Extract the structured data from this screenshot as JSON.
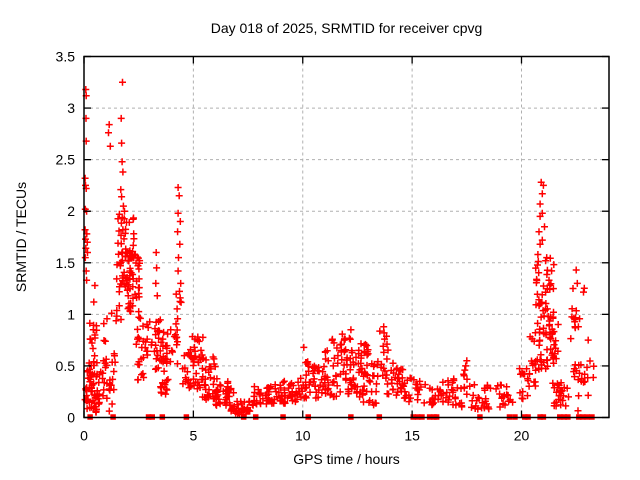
{
  "chart_data": {
    "type": "scatter",
    "title": "Day 018 of 2025, SRMTID for receiver cpvg",
    "xlabel": "GPS time / hours",
    "ylabel": "SRMTID / TECUs",
    "xlim": [
      0,
      24
    ],
    "ylim": [
      0,
      3.5
    ],
    "xticks": [
      0,
      5,
      10,
      15,
      20
    ],
    "yticks": [
      0,
      0.5,
      1,
      1.5,
      2,
      2.5,
      3,
      3.5
    ],
    "grid": {
      "show": true,
      "style": "dashed",
      "color": "#b0b0b0"
    },
    "legend": "none",
    "marker": {
      "shape": "plus",
      "color": "#ff0000",
      "size": 7,
      "stroke_width": 1.5
    },
    "zero_marker": {
      "shape": "square",
      "color": "#ff0000",
      "size": 5.5
    },
    "series_name": "SRMTID",
    "seed": 20250118,
    "points": [
      [
        0.08,
        3.18
      ],
      [
        0.1,
        3.12
      ],
      [
        0.09,
        2.9
      ],
      [
        0.1,
        2.68
      ],
      [
        0.05,
        2.32
      ],
      [
        0.07,
        2.25
      ],
      [
        0.1,
        2.22
      ],
      [
        0.06,
        2.02
      ],
      [
        0.12,
        2.0
      ],
      [
        0.05,
        1.82
      ],
      [
        0.13,
        1.78
      ],
      [
        0.07,
        1.73
      ],
      [
        0.15,
        1.7
      ],
      [
        0.08,
        1.64
      ],
      [
        0.16,
        1.6
      ],
      [
        0.06,
        1.55
      ],
      [
        0.1,
        1.42
      ],
      [
        0.12,
        1.33
      ],
      [
        0.5,
        1.28
      ],
      [
        0.45,
        1.12
      ],
      [
        1.76,
        3.25
      ],
      [
        1.7,
        2.9
      ],
      [
        1.15,
        2.84
      ],
      [
        1.12,
        2.76
      ],
      [
        1.2,
        2.63
      ],
      [
        1.72,
        2.66
      ],
      [
        1.74,
        2.48
      ],
      [
        1.78,
        2.38
      ],
      [
        1.68,
        2.21
      ],
      [
        1.72,
        2.14
      ],
      [
        1.8,
        2.05
      ],
      [
        1.85,
        2.0
      ],
      [
        1.62,
        1.97
      ],
      [
        3.3,
        1.6
      ],
      [
        3.32,
        1.45
      ],
      [
        3.28,
        1.3
      ],
      [
        3.35,
        1.18
      ],
      [
        4.3,
        2.23
      ],
      [
        4.35,
        2.15
      ],
      [
        4.3,
        1.98
      ],
      [
        4.4,
        1.9
      ],
      [
        4.28,
        1.8
      ],
      [
        4.38,
        1.68
      ],
      [
        4.32,
        1.55
      ],
      [
        4.3,
        1.42
      ],
      [
        4.42,
        1.3
      ],
      [
        5.2,
        0.78
      ],
      [
        10.05,
        0.68
      ],
      [
        12.2,
        0.85
      ],
      [
        13.7,
        0.88
      ],
      [
        13.72,
        0.82
      ],
      [
        17.5,
        0.55
      ],
      [
        17.45,
        0.5
      ],
      [
        20.9,
        2.28
      ],
      [
        21.0,
        2.25
      ],
      [
        20.95,
        2.17
      ],
      [
        20.85,
        2.07
      ],
      [
        20.95,
        1.98
      ],
      [
        20.85,
        1.95
      ],
      [
        21.05,
        1.85
      ],
      [
        20.8,
        1.8
      ],
      [
        20.95,
        1.72
      ],
      [
        20.85,
        1.68
      ],
      [
        20.75,
        1.58
      ],
      [
        21.1,
        1.52
      ],
      [
        21.15,
        1.55
      ],
      [
        22.5,
        1.43
      ],
      [
        22.55,
        1.3
      ],
      [
        22.45,
        0.95
      ],
      [
        22.6,
        0.88
      ],
      [
        23.05,
        0.75
      ]
    ],
    "clusters": [
      {
        "x0": 0.05,
        "x1": 0.6,
        "y0": 0.05,
        "y1": 0.55,
        "n": 55
      },
      {
        "x0": 0.25,
        "x1": 0.6,
        "y0": 0.55,
        "y1": 1.0,
        "n": 12
      },
      {
        "x0": 0.6,
        "x1": 1.4,
        "y0": 0.05,
        "y1": 0.45,
        "n": 26
      },
      {
        "x0": 0.85,
        "x1": 1.45,
        "y0": 0.45,
        "y1": 1.05,
        "n": 14
      },
      {
        "x0": 1.45,
        "x1": 1.7,
        "y0": 0.9,
        "y1": 1.55,
        "n": 10
      },
      {
        "x0": 1.55,
        "x1": 2.3,
        "y0": 1.5,
        "y1": 2.0,
        "n": 26
      },
      {
        "x0": 1.65,
        "x1": 2.55,
        "y0": 1.22,
        "y1": 1.62,
        "n": 55
      },
      {
        "x0": 2.0,
        "x1": 2.6,
        "y0": 1.02,
        "y1": 1.25,
        "n": 14
      },
      {
        "x0": 2.35,
        "x1": 2.95,
        "y0": 0.6,
        "y1": 0.98,
        "n": 14
      },
      {
        "x0": 2.3,
        "x1": 2.75,
        "y0": 0.35,
        "y1": 0.62,
        "n": 10
      },
      {
        "x0": 2.75,
        "x1": 3.15,
        "y0": 0.5,
        "y1": 1.0,
        "n": 7
      },
      {
        "x0": 3.2,
        "x1": 3.85,
        "y0": 0.45,
        "y1": 0.95,
        "n": 35
      },
      {
        "x0": 3.5,
        "x1": 3.9,
        "y0": 0.18,
        "y1": 0.45,
        "n": 13
      },
      {
        "x0": 3.95,
        "x1": 4.28,
        "y0": 0.5,
        "y1": 0.9,
        "n": 9
      },
      {
        "x0": 4.15,
        "x1": 4.45,
        "y0": 0.65,
        "y1": 1.25,
        "n": 12
      },
      {
        "x0": 4.5,
        "x1": 5.05,
        "y0": 0.25,
        "y1": 0.7,
        "n": 22
      },
      {
        "x0": 4.95,
        "x1": 5.45,
        "y0": 0.22,
        "y1": 0.8,
        "n": 26
      },
      {
        "x0": 5.4,
        "x1": 6.0,
        "y0": 0.15,
        "y1": 0.6,
        "n": 30
      },
      {
        "x0": 5.95,
        "x1": 6.6,
        "y0": 0.08,
        "y1": 0.4,
        "n": 30
      },
      {
        "x0": 6.55,
        "x1": 7.0,
        "y0": 0.05,
        "y1": 0.28,
        "n": 18
      },
      {
        "x0": 6.9,
        "x1": 7.75,
        "y0": 0.02,
        "y1": 0.16,
        "n": 28
      },
      {
        "x0": 7.75,
        "x1": 8.6,
        "y0": 0.12,
        "y1": 0.3,
        "n": 30
      },
      {
        "x0": 8.55,
        "x1": 9.25,
        "y0": 0.13,
        "y1": 0.34,
        "n": 24
      },
      {
        "x0": 9.15,
        "x1": 9.95,
        "y0": 0.15,
        "y1": 0.36,
        "n": 24
      },
      {
        "x0": 9.9,
        "x1": 10.4,
        "y0": 0.18,
        "y1": 0.55,
        "n": 20
      },
      {
        "x0": 10.35,
        "x1": 11.05,
        "y0": 0.15,
        "y1": 0.5,
        "n": 28
      },
      {
        "x0": 11.0,
        "x1": 11.6,
        "y0": 0.2,
        "y1": 0.78,
        "n": 28
      },
      {
        "x0": 11.55,
        "x1": 12.35,
        "y0": 0.22,
        "y1": 0.82,
        "n": 45
      },
      {
        "x0": 12.35,
        "x1": 13.0,
        "y0": 0.15,
        "y1": 0.75,
        "n": 40
      },
      {
        "x0": 12.95,
        "x1": 13.45,
        "y0": 0.1,
        "y1": 0.55,
        "n": 20
      },
      {
        "x0": 13.5,
        "x1": 13.9,
        "y0": 0.3,
        "y1": 0.85,
        "n": 16
      },
      {
        "x0": 13.85,
        "x1": 14.6,
        "y0": 0.2,
        "y1": 0.55,
        "n": 26
      },
      {
        "x0": 14.55,
        "x1": 15.35,
        "y0": 0.15,
        "y1": 0.4,
        "n": 22
      },
      {
        "x0": 15.4,
        "x1": 16.3,
        "y0": 0.1,
        "y1": 0.32,
        "n": 20
      },
      {
        "x0": 16.3,
        "x1": 17.35,
        "y0": 0.1,
        "y1": 0.38,
        "n": 28
      },
      {
        "x0": 17.35,
        "x1": 17.65,
        "y0": 0.22,
        "y1": 0.48,
        "n": 8
      },
      {
        "x0": 17.7,
        "x1": 18.7,
        "y0": 0.08,
        "y1": 0.32,
        "n": 24
      },
      {
        "x0": 18.8,
        "x1": 19.6,
        "y0": 0.1,
        "y1": 0.32,
        "n": 18
      },
      {
        "x0": 19.8,
        "x1": 20.4,
        "y0": 0.15,
        "y1": 0.48,
        "n": 15
      },
      {
        "x0": 20.35,
        "x1": 20.65,
        "y0": 0.3,
        "y1": 0.85,
        "n": 13
      },
      {
        "x0": 20.6,
        "x1": 21.5,
        "y0": 0.45,
        "y1": 1.55,
        "n": 72
      },
      {
        "x0": 21.15,
        "x1": 21.75,
        "y0": 0.3,
        "y1": 0.95,
        "n": 20
      },
      {
        "x0": 21.4,
        "x1": 22.15,
        "y0": 0.08,
        "y1": 0.35,
        "n": 24
      },
      {
        "x0": 22.25,
        "x1": 22.9,
        "y0": 0.4,
        "y1": 1.3,
        "n": 15
      },
      {
        "x0": 22.4,
        "x1": 23.35,
        "y0": 0.05,
        "y1": 0.55,
        "n": 20
      }
    ],
    "zero_marker_hours": [
      0.28,
      1.33,
      2.95,
      3.12,
      3.58,
      4.68,
      7.3,
      7.85,
      9.1,
      10.25,
      12.2,
      13.5,
      15.05,
      15.25,
      15.45,
      15.8,
      16.0,
      16.12,
      18.1,
      19.45,
      19.7,
      20.15,
      20.3,
      20.85,
      21.0,
      21.75,
      21.95,
      22.12,
      22.62,
      22.8,
      23.0,
      23.22
    ]
  }
}
